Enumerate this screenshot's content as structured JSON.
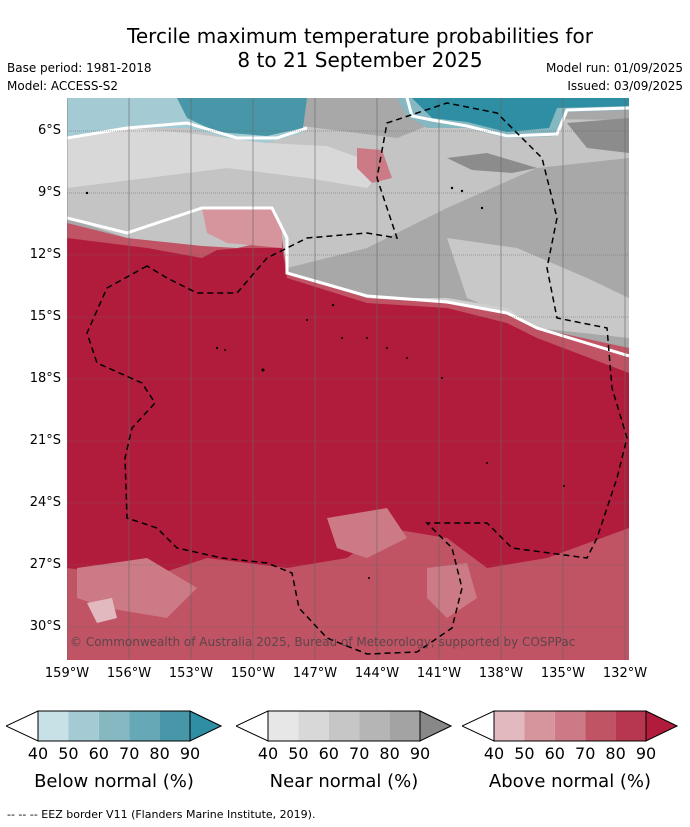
{
  "title": {
    "line1": "Tercile maximum temperature probabilities for",
    "line2": "8 to 21 September 2025"
  },
  "meta": {
    "base_period": "Base period: 1981-2018",
    "model": "Model: ACCESS-S2",
    "model_run": "Model run: 01/09/2025",
    "issued": "Issued: 03/09/2025"
  },
  "map": {
    "latitudes": [
      "6°S",
      "9°S",
      "12°S",
      "15°S",
      "18°S",
      "21°S",
      "24°S",
      "27°S",
      "30°S"
    ],
    "longitudes": [
      "159°W",
      "156°W",
      "153°W",
      "150°W",
      "147°W",
      "144°W",
      "141°W",
      "138°W",
      "135°W",
      "132°W"
    ],
    "copyright": "© Commonwealth of Australia 2025, Bureau of Meteorology, supported by COSPPac"
  },
  "legend": {
    "ticks": [
      "40",
      "50",
      "60",
      "70",
      "80",
      "90"
    ],
    "below": {
      "title": "Below normal (%)",
      "colors": [
        "#c8e1e7",
        "#a4cbd3",
        "#86b8c2",
        "#66a8b6",
        "#4797a8",
        "#2e8ea3"
      ]
    },
    "near": {
      "title": "Near normal (%)",
      "colors": [
        "#e7e7e7",
        "#d8d8d8",
        "#c6c6c6",
        "#b5b5b5",
        "#a3a3a3",
        "#888888"
      ]
    },
    "above": {
      "title": "Above normal (%)",
      "colors": [
        "#e2b9bf",
        "#d6949c",
        "#cc7b86",
        "#c05364",
        "#b73750",
        "#b21c3c"
      ]
    }
  },
  "footer": "-- -- -- EEZ border V11 (Flanders Marine Institute, 2019)."
}
